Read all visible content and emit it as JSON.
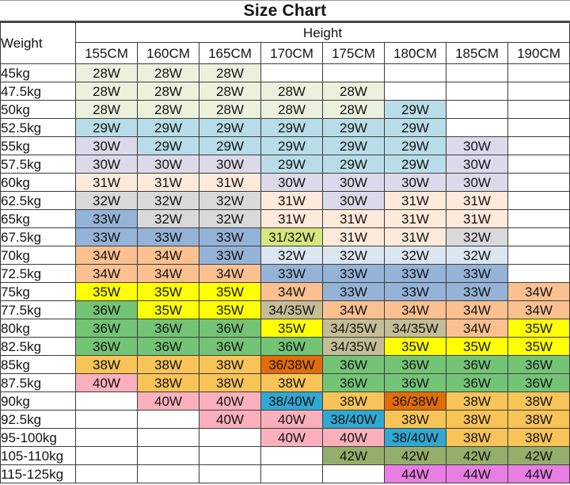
{
  "title": "Size Chart",
  "palette": {
    "beige": "#ebf1dd",
    "lightblue": "#b9dde8",
    "lavender": "#dcd9ea",
    "peach": "#fdeada",
    "gray": "#d9d9d9",
    "bluegray": "#dce6f1",
    "blue": "#95b3d7",
    "salmon": "#fac090",
    "yellow": "#ffff00",
    "green": "#74c476",
    "amber": "#f8c458",
    "pink": "#f9b0bc",
    "yellowgreen": "#d7e87e",
    "tan": "#c4bd97",
    "darkorange": "#e36c09",
    "cyan": "#31a8d2",
    "olive": "#94ae6b",
    "orchid": "#e97ee2"
  },
  "chart_data": {
    "type": "table",
    "title": "Size Chart",
    "row_header": "Weight",
    "col_group_header": "Height",
    "columns": [
      "155CM",
      "160CM",
      "165CM",
      "170CM",
      "175CM",
      "180CM",
      "185CM",
      "190CM"
    ],
    "rows": [
      {
        "label": "45kg",
        "cells": [
          [
            "28W",
            "beige"
          ],
          [
            "28W",
            "beige"
          ],
          [
            "28W",
            "beige"
          ],
          null,
          null,
          null,
          null,
          null
        ]
      },
      {
        "label": "47.5kg",
        "cells": [
          [
            "28W",
            "beige"
          ],
          [
            "28W",
            "beige"
          ],
          [
            "28W",
            "beige"
          ],
          [
            "28W",
            "beige"
          ],
          [
            "28W",
            "beige"
          ],
          null,
          null,
          null
        ]
      },
      {
        "label": "50kg",
        "cells": [
          [
            "28W",
            "beige"
          ],
          [
            "28W",
            "beige"
          ],
          [
            "28W",
            "beige"
          ],
          [
            "28W",
            "beige"
          ],
          [
            "28W",
            "beige"
          ],
          [
            "29W",
            "lightblue"
          ],
          null,
          null
        ]
      },
      {
        "label": "52.5kg",
        "cells": [
          [
            "29W",
            "lightblue"
          ],
          [
            "29W",
            "lightblue"
          ],
          [
            "29W",
            "lightblue"
          ],
          [
            "29W",
            "lightblue"
          ],
          [
            "29W",
            "lightblue"
          ],
          [
            "29W",
            "lightblue"
          ],
          null,
          null
        ]
      },
      {
        "label": "55kg",
        "cells": [
          [
            "30W",
            "lavender"
          ],
          [
            "29W",
            "lightblue"
          ],
          [
            "29W",
            "lightblue"
          ],
          [
            "29W",
            "lightblue"
          ],
          [
            "29W",
            "lightblue"
          ],
          [
            "29W",
            "lightblue"
          ],
          [
            "30W",
            "lavender"
          ],
          null
        ]
      },
      {
        "label": "57.5kg",
        "cells": [
          [
            "30W",
            "lavender"
          ],
          [
            "30W",
            "lavender"
          ],
          [
            "30W",
            "lavender"
          ],
          [
            "29W",
            "lightblue"
          ],
          [
            "29W",
            "lightblue"
          ],
          [
            "29W",
            "lightblue"
          ],
          [
            "30W",
            "lavender"
          ],
          null
        ]
      },
      {
        "label": "60kg",
        "cells": [
          [
            "31W",
            "peach"
          ],
          [
            "31W",
            "peach"
          ],
          [
            "31W",
            "peach"
          ],
          [
            "30W",
            "lavender"
          ],
          [
            "30W",
            "lavender"
          ],
          [
            "30W",
            "lavender"
          ],
          [
            "30W",
            "lavender"
          ],
          null
        ]
      },
      {
        "label": "62.5kg",
        "cells": [
          [
            "32W",
            "gray"
          ],
          [
            "32W",
            "gray"
          ],
          [
            "32W",
            "gray"
          ],
          [
            "31W",
            "peach"
          ],
          [
            "30W",
            "lavender"
          ],
          [
            "31W",
            "peach"
          ],
          [
            "31W",
            "peach"
          ],
          null
        ]
      },
      {
        "label": "65kg",
        "cells": [
          [
            "33W",
            "blue"
          ],
          [
            "32W",
            "gray"
          ],
          [
            "32W",
            "gray"
          ],
          [
            "31W",
            "peach"
          ],
          [
            "31W",
            "peach"
          ],
          [
            "31W",
            "peach"
          ],
          [
            "31W",
            "peach"
          ],
          null
        ]
      },
      {
        "label": "67.5kg",
        "cells": [
          [
            "33W",
            "blue"
          ],
          [
            "33W",
            "blue"
          ],
          [
            "33W",
            "blue"
          ],
          [
            "31/32W",
            "yellowgreen"
          ],
          [
            "31W",
            "peach"
          ],
          [
            "31W",
            "peach"
          ],
          [
            "32W",
            "gray"
          ],
          null
        ]
      },
      {
        "label": "70kg",
        "cells": [
          [
            "34W",
            "salmon"
          ],
          [
            "34W",
            "salmon"
          ],
          [
            "33W",
            "blue"
          ],
          [
            "32W",
            "bluegray"
          ],
          [
            "32W",
            "bluegray"
          ],
          [
            "32W",
            "bluegray"
          ],
          [
            "32W",
            "bluegray"
          ],
          null
        ]
      },
      {
        "label": "72.5kg",
        "cells": [
          [
            "34W",
            "salmon"
          ],
          [
            "34W",
            "salmon"
          ],
          [
            "34W",
            "salmon"
          ],
          [
            "33W",
            "blue"
          ],
          [
            "33W",
            "blue"
          ],
          [
            "33W",
            "blue"
          ],
          [
            "33W",
            "blue"
          ],
          null
        ]
      },
      {
        "label": "75kg",
        "cells": [
          [
            "35W",
            "yellow"
          ],
          [
            "35W",
            "yellow"
          ],
          [
            "35W",
            "yellow"
          ],
          [
            "34W",
            "salmon"
          ],
          [
            "33W",
            "blue"
          ],
          [
            "33W",
            "blue"
          ],
          [
            "33W",
            "blue"
          ],
          [
            "34W",
            "salmon"
          ]
        ]
      },
      {
        "label": "77.5kg",
        "cells": [
          [
            "36W",
            "green"
          ],
          [
            "35W",
            "yellow"
          ],
          [
            "35W",
            "yellow"
          ],
          [
            "34/35W",
            "tan"
          ],
          [
            "34W",
            "salmon"
          ],
          [
            "34W",
            "salmon"
          ],
          [
            "34W",
            "salmon"
          ],
          [
            "34W",
            "salmon"
          ]
        ]
      },
      {
        "label": "80kg",
        "cells": [
          [
            "36W",
            "green"
          ],
          [
            "36W",
            "green"
          ],
          [
            "36W",
            "green"
          ],
          [
            "35W",
            "yellow"
          ],
          [
            "34/35W",
            "tan"
          ],
          [
            "34/35W",
            "tan"
          ],
          [
            "34W",
            "salmon"
          ],
          [
            "35W",
            "yellow"
          ]
        ]
      },
      {
        "label": "82.5kg",
        "cells": [
          [
            "36W",
            "green"
          ],
          [
            "36W",
            "green"
          ],
          [
            "36W",
            "green"
          ],
          [
            "36W",
            "green"
          ],
          [
            "34/35W",
            "tan"
          ],
          [
            "35W",
            "yellow"
          ],
          [
            "35W",
            "yellow"
          ],
          [
            "35W",
            "yellow"
          ]
        ]
      },
      {
        "label": "85kg",
        "cells": [
          [
            "38W",
            "amber"
          ],
          [
            "38W",
            "amber"
          ],
          [
            "38W",
            "amber"
          ],
          [
            "36/38W",
            "darkorange"
          ],
          [
            "36W",
            "green"
          ],
          [
            "36W",
            "green"
          ],
          [
            "36W",
            "green"
          ],
          [
            "36W",
            "green"
          ]
        ]
      },
      {
        "label": "87.5kg",
        "cells": [
          [
            "40W",
            "pink"
          ],
          [
            "38W",
            "amber"
          ],
          [
            "38W",
            "amber"
          ],
          [
            "38W",
            "amber"
          ],
          [
            "36W",
            "green"
          ],
          [
            "36W",
            "green"
          ],
          [
            "36W",
            "green"
          ],
          [
            "36W",
            "green"
          ]
        ]
      },
      {
        "label": "90kg",
        "cells": [
          null,
          [
            "40W",
            "pink"
          ],
          [
            "40W",
            "pink"
          ],
          [
            "38/40W",
            "cyan"
          ],
          [
            "38W",
            "amber"
          ],
          [
            "36/38W",
            "darkorange"
          ],
          [
            "38W",
            "amber"
          ],
          [
            "38W",
            "amber"
          ]
        ]
      },
      {
        "label": "92.5kg",
        "cells": [
          null,
          null,
          [
            "40W",
            "pink"
          ],
          [
            "40W",
            "pink"
          ],
          [
            "38/40W",
            "cyan"
          ],
          [
            "38W",
            "amber"
          ],
          [
            "38W",
            "amber"
          ],
          [
            "38W",
            "amber"
          ]
        ]
      },
      {
        "label": "95-100kg",
        "cells": [
          null,
          null,
          null,
          [
            "40W",
            "pink"
          ],
          [
            "40W",
            "pink"
          ],
          [
            "38/40W",
            "cyan"
          ],
          [
            "38W",
            "amber"
          ],
          [
            "38W",
            "amber"
          ]
        ]
      },
      {
        "label": "105-110kg",
        "cells": [
          null,
          null,
          null,
          null,
          [
            "42W",
            "olive"
          ],
          [
            "42W",
            "olive"
          ],
          [
            "42W",
            "olive"
          ],
          [
            "42W",
            "olive"
          ]
        ]
      },
      {
        "label": "115-125kg",
        "cells": [
          null,
          null,
          null,
          null,
          null,
          [
            "44W",
            "orchid"
          ],
          [
            "44W",
            "orchid"
          ],
          [
            "44W",
            "orchid"
          ]
        ]
      }
    ]
  }
}
